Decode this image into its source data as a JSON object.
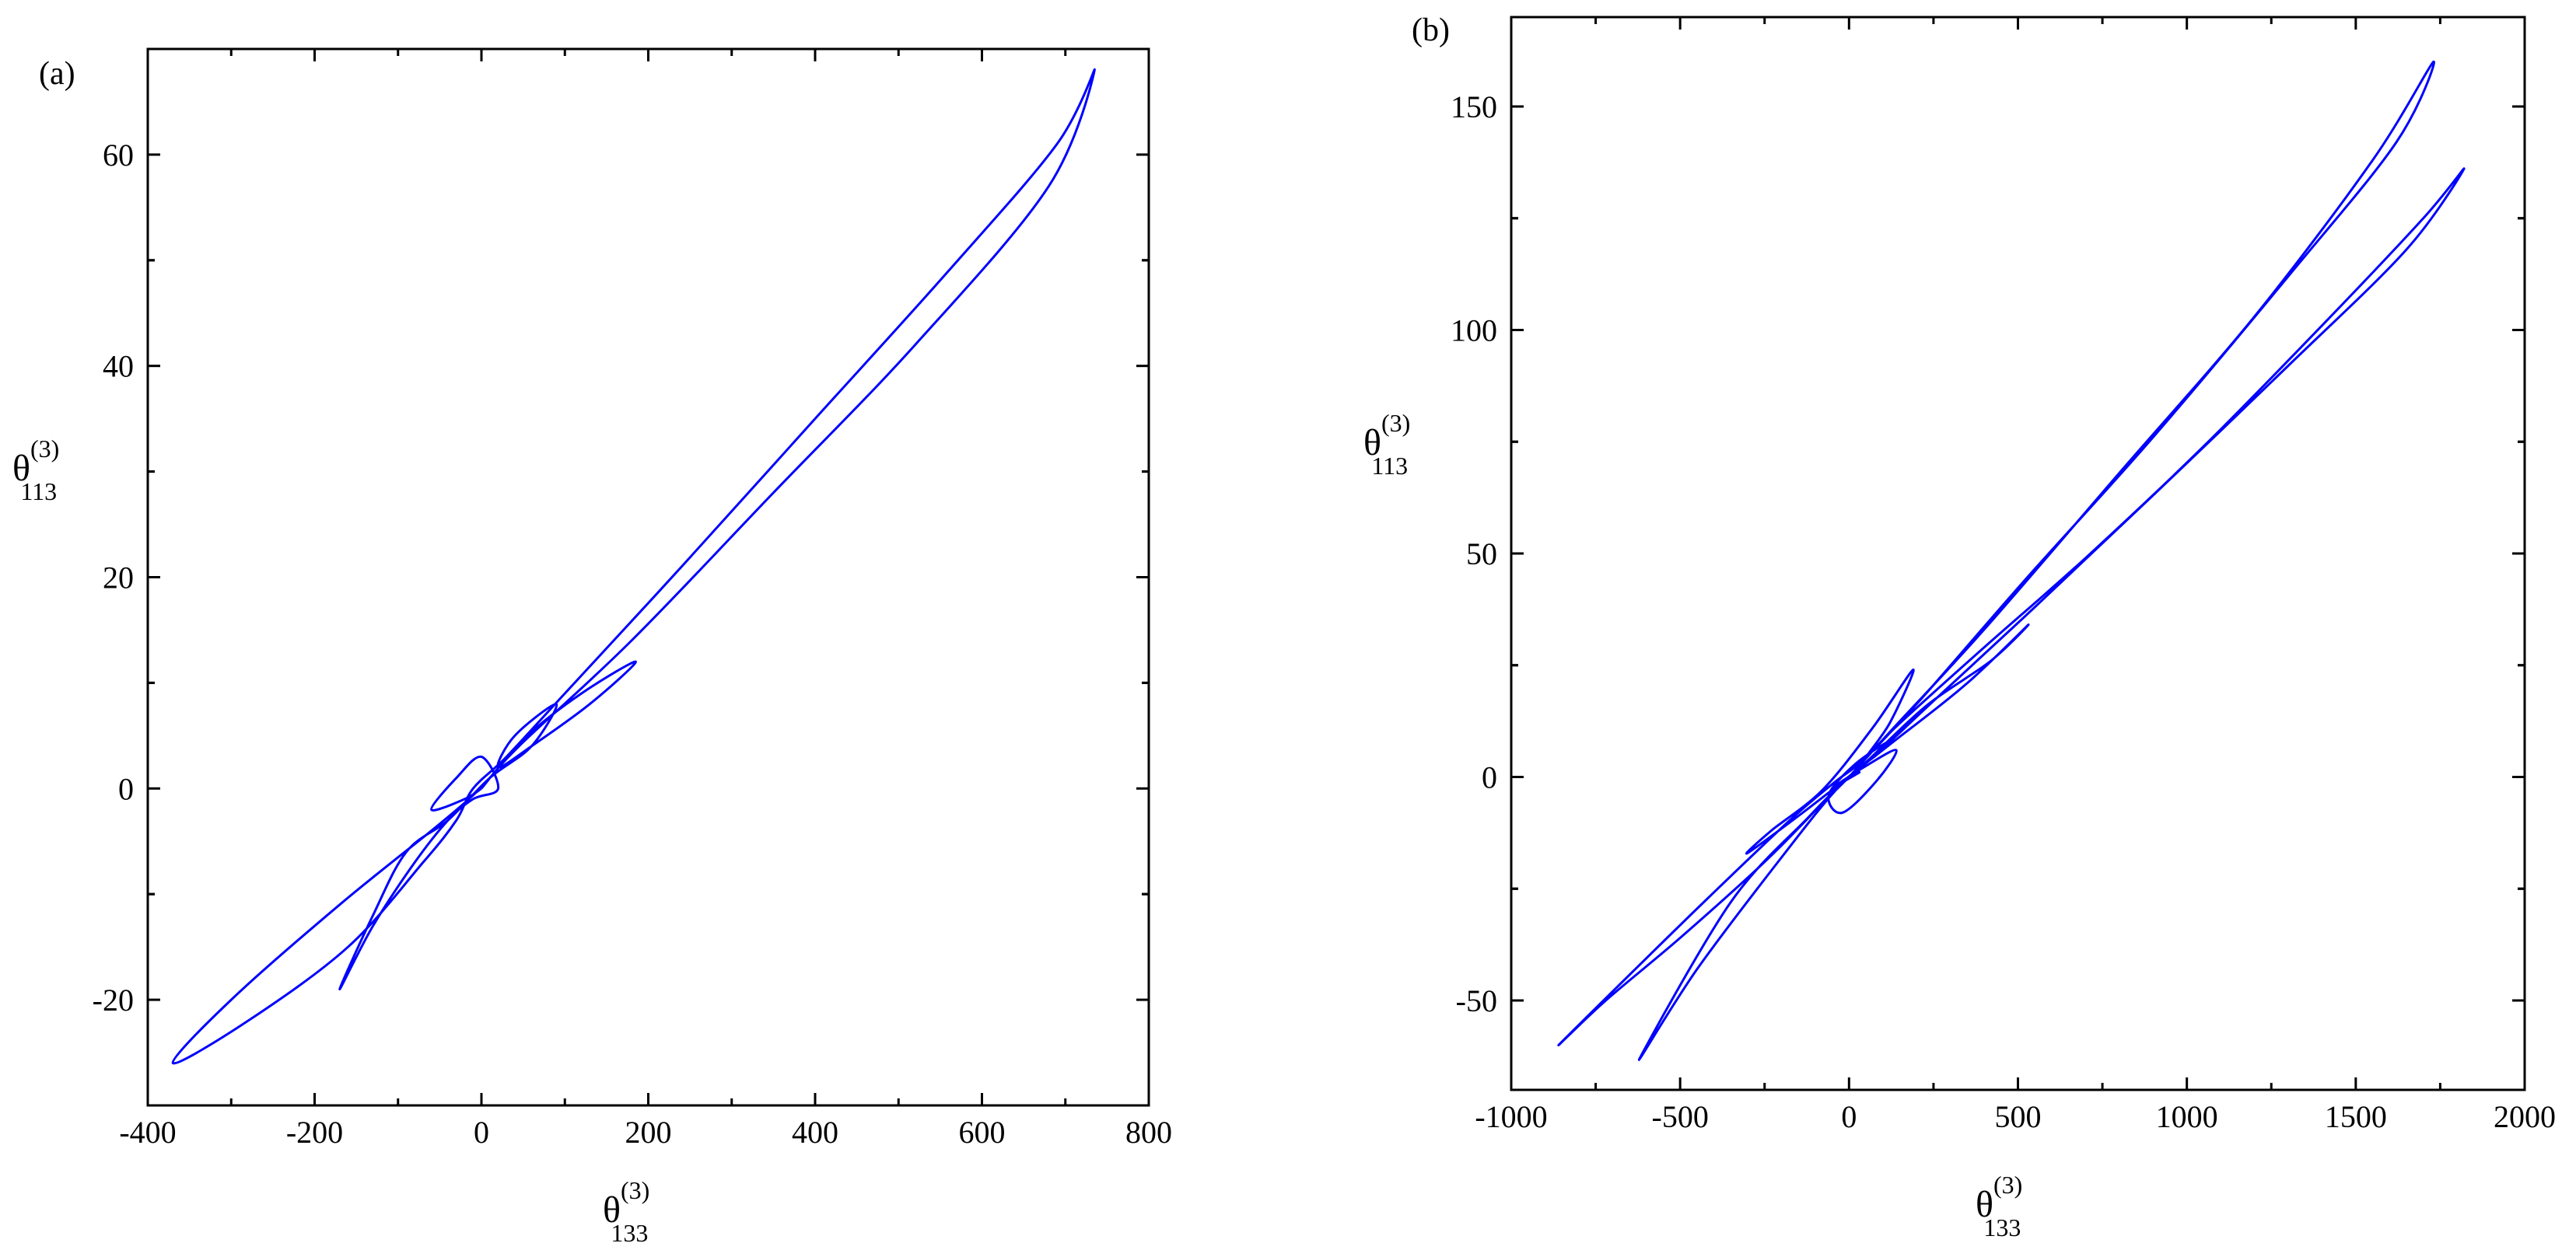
{
  "colors": {
    "curve": "#0000ff",
    "axis": "#000000",
    "background": "#ffffff"
  },
  "chart_data": [
    {
      "type": "line",
      "panel_label": "(a)",
      "xlabel": {
        "base": "θ",
        "sup": "(3)",
        "sub": "133"
      },
      "ylabel": {
        "base": "θ",
        "sup": "(3)",
        "sub": "113"
      },
      "xlim": [
        -400,
        800
      ],
      "ylim": [
        -30,
        70
      ],
      "xticks": [
        -400,
        -200,
        0,
        200,
        400,
        600,
        800
      ],
      "xtick_labels": [
        "-400",
        "-200",
        "0",
        "200",
        "400",
        "600",
        "800"
      ],
      "yticks": [
        -20,
        0,
        20,
        40,
        60
      ],
      "ytick_labels": [
        "-20",
        "0",
        "20",
        "40",
        "60"
      ],
      "grid": false,
      "series": [
        {
          "x": [
            0,
            45,
            180,
            350,
            520,
            680,
            735,
            690,
            560,
            400,
            240,
            100,
            30,
            -10,
            -30,
            -70,
            -160,
            -280,
            -370,
            -300,
            -170,
            -60,
            -15,
            10,
            55,
            120,
            185,
            130,
            60,
            20,
            40,
            90,
            60,
            10,
            -40,
            -90,
            -130,
            -170,
            -130,
            -80,
            -40,
            -10,
            20,
            0,
            -30,
            -60,
            -20,
            0
          ],
          "y": [
            0,
            4,
            14,
            28,
            42,
            57,
            68,
            61,
            49,
            35,
            21,
            9,
            3,
            0,
            -3,
            -7,
            -15,
            -22,
            -26,
            -20,
            -11,
            -4,
            -1,
            1,
            5,
            9,
            12,
            8,
            4,
            2,
            5,
            8,
            4,
            1,
            -3,
            -6,
            -12,
            -19,
            -13,
            -7,
            -3,
            -1,
            0,
            3,
            1,
            -2,
            -1,
            0
          ]
        }
      ]
    },
    {
      "type": "line",
      "panel_label": "(b)",
      "xlabel": {
        "base": "θ",
        "sup": "(3)",
        "sub": "133"
      },
      "ylabel": {
        "base": "θ",
        "sup": "(3)",
        "sub": "113"
      },
      "xlim": [
        -1000,
        2000
      ],
      "ylim": [
        -70,
        170
      ],
      "xticks": [
        -1000,
        -500,
        0,
        500,
        1000,
        1500,
        2000
      ],
      "xtick_labels": [
        "-1000",
        "-500",
        "0",
        "500",
        "1000",
        "1500",
        "2000"
      ],
      "yticks": [
        -50,
        0,
        50,
        100,
        150
      ],
      "ytick_labels": [
        "-50",
        "0",
        "50",
        "100",
        "150"
      ],
      "grid": false,
      "series": [
        {
          "x": [
            0,
            120,
            400,
            800,
            1200,
            1550,
            1730,
            1620,
            1300,
            900,
            520,
            220,
            60,
            0,
            -80,
            -250,
            -500,
            -720,
            -860,
            -700,
            -430,
            -180,
            -40,
            30,
            150,
            400,
            700,
            1050,
            1400,
            1700,
            1820,
            1650,
            1300,
            900,
            550,
            250,
            80,
            0,
            -120,
            -350,
            -620,
            -450,
            -200,
            -40,
            60,
            230,
            420,
            530,
            350,
            150,
            40,
            120,
            190,
            70,
            -80,
            -230,
            -300,
            -120,
            30,
            120,
            20,
            -60,
            -20,
            80,
            140,
            40,
            -40,
            30,
            0
          ],
          "y": [
            0,
            10,
            33,
            68,
            103,
            138,
            160,
            142,
            112,
            76,
            44,
            18,
            5,
            0,
            -6,
            -19,
            -36,
            -50,
            -60,
            -48,
            -28,
            -10,
            -1,
            3,
            12,
            29,
            49,
            74,
            101,
            125,
            136,
            118,
            92,
            63,
            38,
            17,
            5,
            0,
            -9,
            -28,
            -63,
            -43,
            -18,
            -3,
            4,
            16,
            26,
            34,
            21,
            9,
            3,
            12,
            24,
            11,
            -3,
            -12,
            -17,
            -7,
            2,
            8,
            3,
            -4,
            -8,
            -1,
            6,
            2,
            -2,
            1,
            0
          ]
        }
      ]
    }
  ]
}
